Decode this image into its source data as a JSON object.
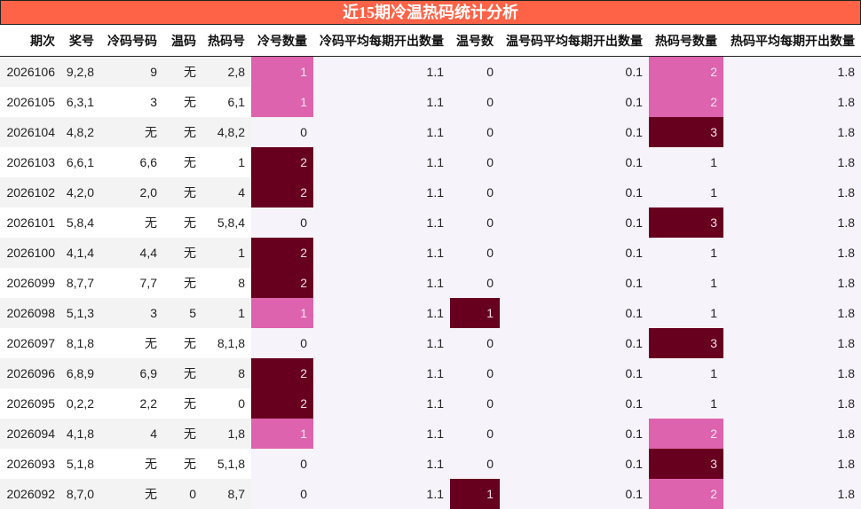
{
  "title": "近15期冷温热码统计分析",
  "colors": {
    "title_bg": "#ff6347",
    "level_low": "#dd63ae",
    "level_high": "#67001f",
    "stat_bg": "#f6f4fa"
  },
  "columns": [
    "期次",
    "奖号",
    "冷码号码",
    "温码",
    "热码号",
    "冷号数量",
    "冷码平均每期开出数量",
    "温号数",
    "温号码平均每期开出数量",
    "热码号数量",
    "热码平均每期开出数量"
  ],
  "rows": [
    {
      "period": "2026106",
      "draw": "9,2,8",
      "cold": "9",
      "warm": "无",
      "hot": "2,8",
      "cold_cnt": "1",
      "cold_avg": "1.1",
      "warm_cnt": "0",
      "warm_avg": "0.1",
      "hot_cnt": "2",
      "hot_avg": "1.8",
      "cold_lvl": "hi1",
      "warm_lvl": "",
      "hot_lvl": "hi1"
    },
    {
      "period": "2026105",
      "draw": "6,3,1",
      "cold": "3",
      "warm": "无",
      "hot": "6,1",
      "cold_cnt": "1",
      "cold_avg": "1.1",
      "warm_cnt": "0",
      "warm_avg": "0.1",
      "hot_cnt": "2",
      "hot_avg": "1.8",
      "cold_lvl": "hi1",
      "warm_lvl": "",
      "hot_lvl": "hi1"
    },
    {
      "period": "2026104",
      "draw": "4,8,2",
      "cold": "无",
      "warm": "无",
      "hot": "4,8,2",
      "cold_cnt": "0",
      "cold_avg": "1.1",
      "warm_cnt": "0",
      "warm_avg": "0.1",
      "hot_cnt": "3",
      "hot_avg": "1.8",
      "cold_lvl": "",
      "warm_lvl": "",
      "hot_lvl": "hi2"
    },
    {
      "period": "2026103",
      "draw": "6,6,1",
      "cold": "6,6",
      "warm": "无",
      "hot": "1",
      "cold_cnt": "2",
      "cold_avg": "1.1",
      "warm_cnt": "0",
      "warm_avg": "0.1",
      "hot_cnt": "1",
      "hot_avg": "1.8",
      "cold_lvl": "hi2",
      "warm_lvl": "",
      "hot_lvl": ""
    },
    {
      "period": "2026102",
      "draw": "4,2,0",
      "cold": "2,0",
      "warm": "无",
      "hot": "4",
      "cold_cnt": "2",
      "cold_avg": "1.1",
      "warm_cnt": "0",
      "warm_avg": "0.1",
      "hot_cnt": "1",
      "hot_avg": "1.8",
      "cold_lvl": "hi2",
      "warm_lvl": "",
      "hot_lvl": ""
    },
    {
      "period": "2026101",
      "draw": "5,8,4",
      "cold": "无",
      "warm": "无",
      "hot": "5,8,4",
      "cold_cnt": "0",
      "cold_avg": "1.1",
      "warm_cnt": "0",
      "warm_avg": "0.1",
      "hot_cnt": "3",
      "hot_avg": "1.8",
      "cold_lvl": "",
      "warm_lvl": "",
      "hot_lvl": "hi2"
    },
    {
      "period": "2026100",
      "draw": "4,1,4",
      "cold": "4,4",
      "warm": "无",
      "hot": "1",
      "cold_cnt": "2",
      "cold_avg": "1.1",
      "warm_cnt": "0",
      "warm_avg": "0.1",
      "hot_cnt": "1",
      "hot_avg": "1.8",
      "cold_lvl": "hi2",
      "warm_lvl": "",
      "hot_lvl": ""
    },
    {
      "period": "2026099",
      "draw": "8,7,7",
      "cold": "7,7",
      "warm": "无",
      "hot": "8",
      "cold_cnt": "2",
      "cold_avg": "1.1",
      "warm_cnt": "0",
      "warm_avg": "0.1",
      "hot_cnt": "1",
      "hot_avg": "1.8",
      "cold_lvl": "hi2",
      "warm_lvl": "",
      "hot_lvl": ""
    },
    {
      "period": "2026098",
      "draw": "5,1,3",
      "cold": "3",
      "warm": "5",
      "hot": "1",
      "cold_cnt": "1",
      "cold_avg": "1.1",
      "warm_cnt": "1",
      "warm_avg": "0.1",
      "hot_cnt": "1",
      "hot_avg": "1.8",
      "cold_lvl": "hi1",
      "warm_lvl": "hi2",
      "hot_lvl": ""
    },
    {
      "period": "2026097",
      "draw": "8,1,8",
      "cold": "无",
      "warm": "无",
      "hot": "8,1,8",
      "cold_cnt": "0",
      "cold_avg": "1.1",
      "warm_cnt": "0",
      "warm_avg": "0.1",
      "hot_cnt": "3",
      "hot_avg": "1.8",
      "cold_lvl": "",
      "warm_lvl": "",
      "hot_lvl": "hi2"
    },
    {
      "period": "2026096",
      "draw": "6,8,9",
      "cold": "6,9",
      "warm": "无",
      "hot": "8",
      "cold_cnt": "2",
      "cold_avg": "1.1",
      "warm_cnt": "0",
      "warm_avg": "0.1",
      "hot_cnt": "1",
      "hot_avg": "1.8",
      "cold_lvl": "hi2",
      "warm_lvl": "",
      "hot_lvl": ""
    },
    {
      "period": "2026095",
      "draw": "0,2,2",
      "cold": "2,2",
      "warm": "无",
      "hot": "0",
      "cold_cnt": "2",
      "cold_avg": "1.1",
      "warm_cnt": "0",
      "warm_avg": "0.1",
      "hot_cnt": "1",
      "hot_avg": "1.8",
      "cold_lvl": "hi2",
      "warm_lvl": "",
      "hot_lvl": ""
    },
    {
      "period": "2026094",
      "draw": "4,1,8",
      "cold": "4",
      "warm": "无",
      "hot": "1,8",
      "cold_cnt": "1",
      "cold_avg": "1.1",
      "warm_cnt": "0",
      "warm_avg": "0.1",
      "hot_cnt": "2",
      "hot_avg": "1.8",
      "cold_lvl": "hi1",
      "warm_lvl": "",
      "hot_lvl": "hi1"
    },
    {
      "period": "2026093",
      "draw": "5,1,8",
      "cold": "无",
      "warm": "无",
      "hot": "5,1,8",
      "cold_cnt": "0",
      "cold_avg": "1.1",
      "warm_cnt": "0",
      "warm_avg": "0.1",
      "hot_cnt": "3",
      "hot_avg": "1.8",
      "cold_lvl": "",
      "warm_lvl": "",
      "hot_lvl": "hi2"
    },
    {
      "period": "2026092",
      "draw": "8,7,0",
      "cold": "无",
      "warm": "0",
      "hot": "8,7",
      "cold_cnt": "0",
      "cold_avg": "1.1",
      "warm_cnt": "1",
      "warm_avg": "0.1",
      "hot_cnt": "2",
      "hot_avg": "1.8",
      "cold_lvl": "",
      "warm_lvl": "hi2",
      "hot_lvl": "hi1"
    }
  ]
}
